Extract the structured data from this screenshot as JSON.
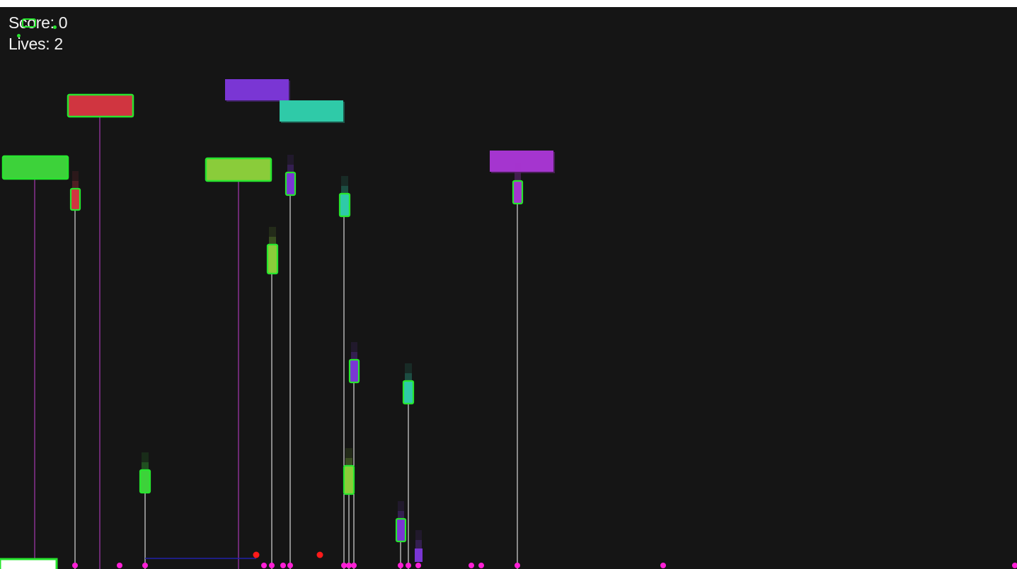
{
  "hud": {
    "score_label": "Score:",
    "score_value": "0",
    "lives_label": "Lives:",
    "lives_value": "2"
  },
  "colors": {
    "background": "#151515",
    "detection_box": "#27e52e",
    "guide_line_white": "#ffffff",
    "guide_line_magenta": "#c43fd0",
    "ground_marker": "#ff1fd6",
    "hazard_dot": "#ff1a1a",
    "paddle": "#ffffff",
    "baseline": "#2222aa"
  },
  "scene": {
    "targets": [
      {
        "name": "target-red",
        "color": "#d03540"
      },
      {
        "name": "target-purple",
        "color": "#7a36d4"
      },
      {
        "name": "target-teal",
        "color": "#2fcaa8"
      },
      {
        "name": "target-green",
        "color": "#3dd23a"
      },
      {
        "name": "target-lime",
        "color": "#8acc3a"
      },
      {
        "name": "target-violet",
        "color": "#a535cf"
      }
    ],
    "projectiles": [
      {
        "name": "projectile-red",
        "color": "#d03540"
      },
      {
        "name": "projectile-purple-1",
        "color": "#7a36d4"
      },
      {
        "name": "projectile-teal-1",
        "color": "#2fcaa8"
      },
      {
        "name": "projectile-violet",
        "color": "#a535cf"
      },
      {
        "name": "projectile-lime-1",
        "color": "#8acc3a"
      },
      {
        "name": "projectile-purple-2",
        "color": "#7a36d4"
      },
      {
        "name": "projectile-teal-2",
        "color": "#2fcaa8"
      },
      {
        "name": "projectile-green",
        "color": "#3dd23a"
      },
      {
        "name": "projectile-lime-2",
        "color": "#8acc3a"
      },
      {
        "name": "projectile-purple-3",
        "color": "#7a36d4"
      },
      {
        "name": "projectile-purple-4",
        "color": "#7a36d4"
      }
    ]
  }
}
